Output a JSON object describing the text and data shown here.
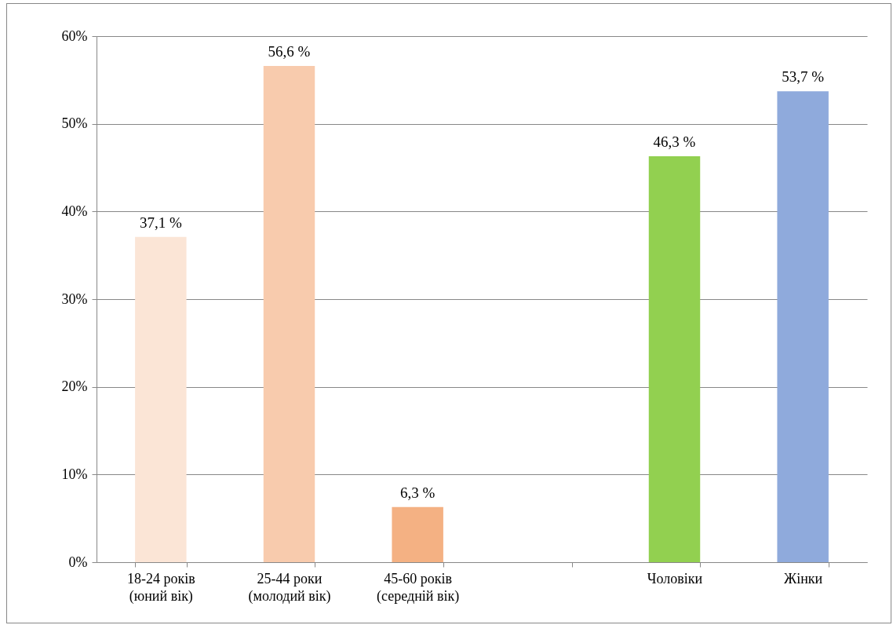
{
  "chart_data": {
    "type": "bar",
    "categories": [
      "18-24 років\n(юний вік)",
      "25-44 роки\n(молодий вік)",
      "45-60 років\n(середній вік)",
      null,
      "Чоловіки",
      "Жінки"
    ],
    "values": [
      37.1,
      56.6,
      6.3,
      null,
      46.3,
      53.7
    ],
    "value_labels": [
      "37,1 %",
      "56,6 %",
      "6,3 %",
      null,
      "46,3 %",
      "53,7 %"
    ],
    "colors": [
      "#fbe5d6",
      "#f8cbad",
      "#f4b183",
      "#ffffff",
      "#92d050",
      "#8faadc"
    ],
    "ylim": [
      0,
      60
    ],
    "yticks": [
      {
        "value": 0,
        "label": "0%"
      },
      {
        "value": 10,
        "label": "10%"
      },
      {
        "value": 20,
        "label": "20%"
      },
      {
        "value": 30,
        "label": "30%"
      },
      {
        "value": 40,
        "label": "40%"
      },
      {
        "value": 50,
        "label": "50%"
      },
      {
        "value": 60,
        "label": "60%"
      }
    ],
    "grid": "y"
  }
}
